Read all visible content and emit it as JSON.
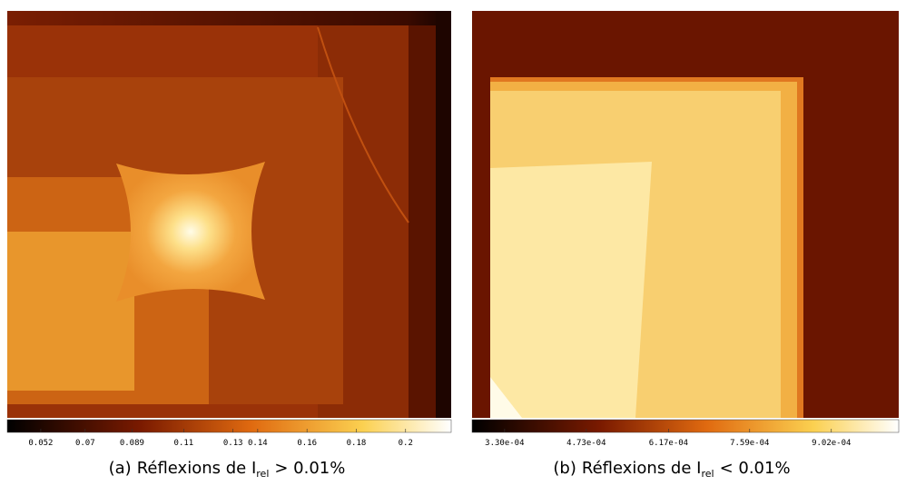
{
  "panels": [
    {
      "colorbar": {
        "lim": [
          0.0384,
          0.2185
        ],
        "ticks": [
          0.052,
          0.07,
          0.089,
          0.11,
          0.13,
          0.14,
          0.16,
          0.18,
          0.2
        ]
      },
      "caption": {
        "label": "(a)",
        "text": "Réflexions de I",
        "subscript": "rel",
        "relation": "> 0.01%"
      }
    },
    {
      "colorbar": {
        "lim": [
          0.000273,
          0.00102
        ],
        "ticks": [
          {
            "value": 0.00033,
            "label": "3.30e-04"
          },
          {
            "value": 0.000473,
            "label": "4.73e-04"
          },
          {
            "value": 0.000617,
            "label": "6.17e-04"
          },
          {
            "value": 0.000759,
            "label": "7.59e-04"
          },
          {
            "value": 0.000902,
            "label": "9.02e-04"
          }
        ]
      },
      "caption": {
        "label": "(b)",
        "text": "Réflexions de I",
        "subscript": "rel",
        "relation": "< 0.01%"
      }
    }
  ]
}
